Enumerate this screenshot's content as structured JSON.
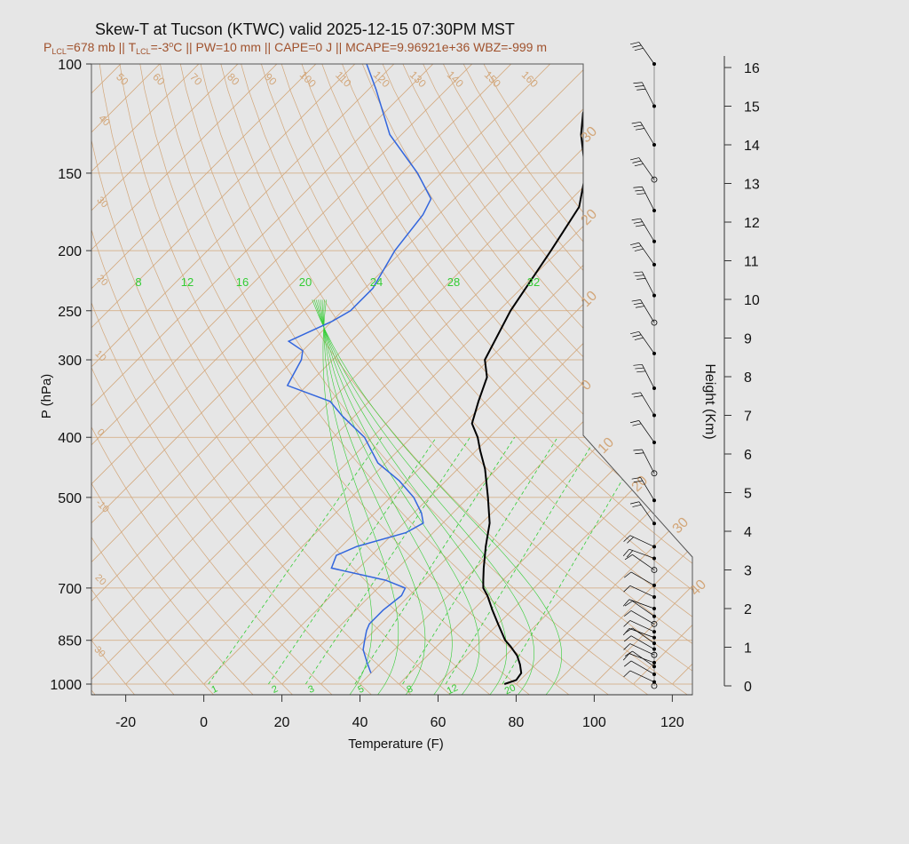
{
  "chart_data": {
    "type": "line",
    "title": "Skew-T at Tucson (KTWC) valid 2025-12-15 07:30PM MST",
    "subtitle": {
      "p_lcl": "678 mb",
      "t_lcl": "-3",
      "t_lcl_unit": "oC",
      "pw": "10 mm",
      "cape": "0 J",
      "mcape": "9.96921e+36",
      "wbz": "-999 m"
    },
    "subtitle_labels": {
      "p": "P",
      "t": "T",
      "lcl": "LCL",
      "sep": "||",
      "pw": "PW=",
      "cape": "CAPE=",
      "mcape": "MCAPE=",
      "wbz": "WBZ="
    },
    "xlabel": "Temperature (F)",
    "ylabel": "P (hPa)",
    "y2label": "Height (Km)",
    "xlim": [
      -28,
      125
    ],
    "x_ticks": [
      "-20",
      "0",
      "20",
      "40",
      "60",
      "80",
      "100",
      "120"
    ],
    "y_ticks": [
      "100",
      "150",
      "200",
      "250",
      "300",
      "400",
      "500",
      "700",
      "850",
      "1000"
    ],
    "height_ticks": [
      "0",
      "1",
      "2",
      "3",
      "4",
      "5",
      "6",
      "7",
      "8",
      "9",
      "10",
      "11",
      "12",
      "13",
      "14",
      "15",
      "16"
    ],
    "mixing_ratio_labels_top": [
      "8",
      "12",
      "16",
      "20",
      "24",
      "28",
      "32"
    ],
    "mixing_ratio_labels_bottom": [
      "1",
      "2",
      "3",
      "5",
      "8",
      "12",
      "20"
    ],
    "isotherm_labels_top": [
      "50",
      "60",
      "70",
      "80",
      "90",
      "100",
      "110",
      "120",
      "130",
      "140",
      "150",
      "160"
    ],
    "isotherm_labels_right": [
      "30",
      "20",
      "10",
      "0",
      "10",
      "20",
      "30",
      "40"
    ],
    "isotherm_labels_left": [
      "40",
      "30",
      "20",
      "10",
      "0",
      "-10",
      "20",
      "30"
    ],
    "colors": {
      "temperature": "#000000",
      "dewpoint": "#3366dd",
      "isotherm": "#d2a679",
      "mixing_ratio": "#33cc33",
      "title": "#111111",
      "subtitle": "#a0522d"
    },
    "series": [
      {
        "key": "temperature",
        "points": [
          [
            1000,
            77
          ],
          [
            985,
            79
          ],
          [
            960,
            78.5
          ],
          [
            930,
            76
          ],
          [
            900,
            73
          ],
          [
            870,
            69
          ],
          [
            850,
            66
          ],
          [
            800,
            60
          ],
          [
            760,
            55
          ],
          [
            720,
            50
          ],
          [
            700,
            47
          ],
          [
            680,
            45
          ],
          [
            650,
            42
          ],
          [
            600,
            37
          ],
          [
            550,
            32
          ],
          [
            500,
            25
          ],
          [
            450,
            17
          ],
          [
            420,
            11
          ],
          [
            400,
            7
          ],
          [
            380,
            2
          ],
          [
            350,
            -2
          ],
          [
            320,
            -6
          ],
          [
            300,
            -11
          ],
          [
            250,
            -17
          ],
          [
            200,
            -22
          ],
          [
            170,
            -26
          ],
          [
            150,
            -33
          ],
          [
            130,
            -44
          ],
          [
            120,
            -49
          ],
          [
            110,
            -53
          ],
          [
            100,
            -54
          ]
        ]
      },
      {
        "key": "dewpoint",
        "points": [
          [
            960,
            40
          ],
          [
            950,
            39
          ],
          [
            920,
            36
          ],
          [
            880,
            32
          ],
          [
            850,
            30
          ],
          [
            820,
            28
          ],
          [
            800,
            27
          ],
          [
            760,
            27
          ],
          [
            720,
            28
          ],
          [
            700,
            27
          ],
          [
            680,
            20
          ],
          [
            650,
            3
          ],
          [
            620,
            1
          ],
          [
            600,
            4
          ],
          [
            570,
            13
          ],
          [
            550,
            15
          ],
          [
            530,
            12
          ],
          [
            500,
            6
          ],
          [
            470,
            -2
          ],
          [
            440,
            -12
          ],
          [
            400,
            -22
          ],
          [
            370,
            -33
          ],
          [
            350,
            -40
          ],
          [
            330,
            -55
          ],
          [
            300,
            -58
          ],
          [
            290,
            -60
          ],
          [
            280,
            -66
          ],
          [
            260,
            -60
          ],
          [
            250,
            -58
          ],
          [
            230,
            -58
          ],
          [
            200,
            -62
          ],
          [
            175,
            -64
          ],
          [
            165,
            -66
          ],
          [
            150,
            -76
          ],
          [
            130,
            -93
          ],
          [
            110,
            -108
          ],
          [
            100,
            -117
          ]
        ]
      }
    ],
    "height_levels_km": [
      0.0,
      0.1,
      0.3,
      0.5,
      0.6,
      0.8,
      0.95,
      1.1,
      1.25,
      1.4,
      1.6,
      1.8,
      2.0,
      2.3,
      2.6,
      3.0,
      3.3,
      3.6,
      4.2,
      4.8,
      5.5,
      6.3,
      7.0,
      7.7,
      8.6,
      9.4,
      10.1,
      10.9,
      11.5,
      12.3,
      13.1,
      14.0,
      15.0,
      16.2
    ]
  }
}
